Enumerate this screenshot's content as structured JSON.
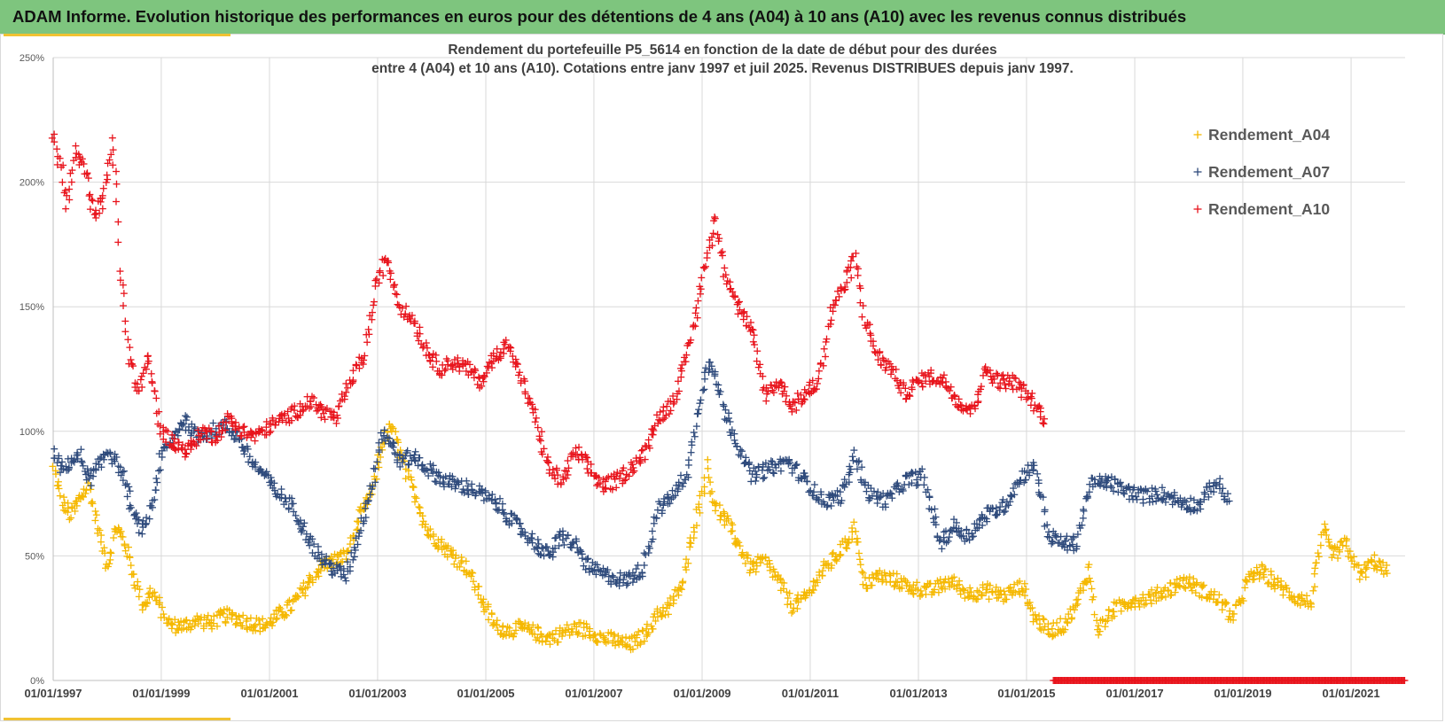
{
  "header": {
    "title": "ADAM Informe. Evolution historique des performances en euros pour des détentions de 4 ans (A04) à 10 ans (A10) avec les revenus connus distribués",
    "bar_color": "#7ec57e"
  },
  "chart_data": {
    "type": "scatter",
    "title_line1": "Rendement du portefeuille P5_5614 en fonction de la date de début pour des durées",
    "title_line2": "entre 4 (A04) et 10 ans (A10). Cotations  entre janv 1997 et juil 2025. Revenus DISTRIBUES depuis janv 1997.",
    "x_ticks": [
      "01/01/1997",
      "01/01/1999",
      "01/01/2001",
      "01/01/2003",
      "01/01/2005",
      "01/01/2007",
      "01/01/2009",
      "01/01/2011",
      "01/01/2013",
      "01/01/2015",
      "01/01/2017",
      "01/01/2019",
      "01/01/2021"
    ],
    "y_ticks": [
      "0%",
      "50%",
      "100%",
      "150%",
      "200%",
      "250%"
    ],
    "xlim": [
      "1997-01-01",
      "2022-01-01"
    ],
    "ylim": [
      0,
      2.5
    ],
    "grid": true,
    "legend_position": "top-right",
    "marker": "+",
    "series": [
      {
        "name": "Rendement_A04",
        "color": "#f5b800",
        "points": [
          [
            "1997-01-01",
            0.85
          ],
          [
            "1997-03-01",
            0.72
          ],
          [
            "1997-05-01",
            0.66
          ],
          [
            "1997-07-01",
            0.73
          ],
          [
            "1997-09-01",
            0.78
          ],
          [
            "1997-11-01",
            0.6
          ],
          [
            "1998-01-01",
            0.46
          ],
          [
            "1998-03-01",
            0.62
          ],
          [
            "1998-05-01",
            0.55
          ],
          [
            "1998-07-01",
            0.42
          ],
          [
            "1998-09-01",
            0.3
          ],
          [
            "1998-11-01",
            0.36
          ],
          [
            "1999-01-01",
            0.28
          ],
          [
            "1999-03-01",
            0.22
          ],
          [
            "1999-06-01",
            0.22
          ],
          [
            "1999-09-01",
            0.24
          ],
          [
            "1999-12-01",
            0.23
          ],
          [
            "2000-03-01",
            0.26
          ],
          [
            "2000-06-01",
            0.25
          ],
          [
            "2000-09-01",
            0.23
          ],
          [
            "2000-12-01",
            0.22
          ],
          [
            "2001-03-01",
            0.26
          ],
          [
            "2001-06-01",
            0.3
          ],
          [
            "2001-09-01",
            0.37
          ],
          [
            "2001-12-01",
            0.45
          ],
          [
            "2002-03-01",
            0.48
          ],
          [
            "2002-06-01",
            0.5
          ],
          [
            "2002-09-01",
            0.65
          ],
          [
            "2002-12-01",
            0.77
          ],
          [
            "2003-02-01",
            0.95
          ],
          [
            "2003-04-01",
            1.02
          ],
          [
            "2003-06-01",
            0.92
          ],
          [
            "2003-08-01",
            0.8
          ],
          [
            "2003-10-01",
            0.72
          ],
          [
            "2003-12-01",
            0.6
          ],
          [
            "2004-03-01",
            0.55
          ],
          [
            "2004-06-01",
            0.5
          ],
          [
            "2004-09-01",
            0.45
          ],
          [
            "2004-12-01",
            0.33
          ],
          [
            "2005-03-01",
            0.22
          ],
          [
            "2005-06-01",
            0.2
          ],
          [
            "2005-09-01",
            0.21
          ],
          [
            "2005-12-01",
            0.19
          ],
          [
            "2006-03-01",
            0.17
          ],
          [
            "2006-06-01",
            0.19
          ],
          [
            "2006-09-01",
            0.21
          ],
          [
            "2006-12-01",
            0.2
          ],
          [
            "2007-03-01",
            0.17
          ],
          [
            "2007-06-01",
            0.16
          ],
          [
            "2007-09-01",
            0.14
          ],
          [
            "2007-12-01",
            0.18
          ],
          [
            "2008-03-01",
            0.26
          ],
          [
            "2008-06-01",
            0.3
          ],
          [
            "2008-09-01",
            0.4
          ],
          [
            "2008-11-01",
            0.6
          ],
          [
            "2009-01-01",
            0.75
          ],
          [
            "2009-02-01",
            0.86
          ],
          [
            "2009-04-01",
            0.7
          ],
          [
            "2009-06-01",
            0.65
          ],
          [
            "2009-09-01",
            0.55
          ],
          [
            "2009-12-01",
            0.45
          ],
          [
            "2010-03-01",
            0.48
          ],
          [
            "2010-06-01",
            0.4
          ],
          [
            "2010-09-01",
            0.3
          ],
          [
            "2010-12-01",
            0.33
          ],
          [
            "2011-03-01",
            0.42
          ],
          [
            "2011-06-01",
            0.48
          ],
          [
            "2011-09-01",
            0.55
          ],
          [
            "2011-11-01",
            0.62
          ],
          [
            "2012-01-01",
            0.38
          ],
          [
            "2012-04-01",
            0.42
          ],
          [
            "2012-08-01",
            0.4
          ],
          [
            "2012-12-01",
            0.37
          ],
          [
            "2013-04-01",
            0.36
          ],
          [
            "2013-08-01",
            0.4
          ],
          [
            "2013-12-01",
            0.35
          ],
          [
            "2014-04-01",
            0.36
          ],
          [
            "2014-08-01",
            0.34
          ],
          [
            "2014-12-01",
            0.38
          ],
          [
            "2015-03-01",
            0.25
          ],
          [
            "2015-06-01",
            0.2
          ],
          [
            "2015-09-01",
            0.22
          ],
          [
            "2015-12-01",
            0.3
          ],
          [
            "2016-03-01",
            0.45
          ],
          [
            "2016-05-01",
            0.2
          ],
          [
            "2016-08-01",
            0.28
          ],
          [
            "2016-12-01",
            0.32
          ],
          [
            "2017-04-01",
            0.33
          ],
          [
            "2017-08-01",
            0.36
          ],
          [
            "2017-12-01",
            0.4
          ],
          [
            "2018-04-01",
            0.36
          ],
          [
            "2018-08-01",
            0.32
          ],
          [
            "2018-11-01",
            0.25
          ],
          [
            "2019-02-01",
            0.4
          ],
          [
            "2019-05-01",
            0.44
          ],
          [
            "2019-09-01",
            0.38
          ],
          [
            "2019-12-01",
            0.34
          ],
          [
            "2020-04-01",
            0.31
          ],
          [
            "2020-07-01",
            0.6
          ],
          [
            "2020-09-01",
            0.5
          ],
          [
            "2020-12-01",
            0.55
          ],
          [
            "2021-03-01",
            0.42
          ],
          [
            "2021-06-01",
            0.48
          ],
          [
            "2021-09-01",
            0.43
          ]
        ]
      },
      {
        "name": "Rendement_A07",
        "color": "#2f4b7c",
        "points": [
          [
            "1997-01-01",
            0.92
          ],
          [
            "1997-03-01",
            0.84
          ],
          [
            "1997-05-01",
            0.88
          ],
          [
            "1997-07-01",
            0.9
          ],
          [
            "1997-09-01",
            0.8
          ],
          [
            "1997-11-01",
            0.85
          ],
          [
            "1998-01-01",
            0.93
          ],
          [
            "1998-03-01",
            0.88
          ],
          [
            "1998-05-01",
            0.8
          ],
          [
            "1998-07-01",
            0.65
          ],
          [
            "1998-09-01",
            0.6
          ],
          [
            "1998-11-01",
            0.72
          ],
          [
            "1999-01-01",
            0.9
          ],
          [
            "1999-03-01",
            0.95
          ],
          [
            "1999-06-01",
            1.05
          ],
          [
            "1999-09-01",
            0.98
          ],
          [
            "1999-12-01",
            1.0
          ],
          [
            "2000-03-01",
            1.02
          ],
          [
            "2000-06-01",
            0.98
          ],
          [
            "2000-09-01",
            0.88
          ],
          [
            "2000-12-01",
            0.82
          ],
          [
            "2001-03-01",
            0.75
          ],
          [
            "2001-06-01",
            0.7
          ],
          [
            "2001-09-01",
            0.6
          ],
          [
            "2001-12-01",
            0.5
          ],
          [
            "2002-03-01",
            0.45
          ],
          [
            "2002-06-01",
            0.42
          ],
          [
            "2002-09-01",
            0.6
          ],
          [
            "2002-12-01",
            0.8
          ],
          [
            "2003-02-01",
            1.0
          ],
          [
            "2003-04-01",
            0.95
          ],
          [
            "2003-06-01",
            0.88
          ],
          [
            "2003-09-01",
            0.9
          ],
          [
            "2003-12-01",
            0.85
          ],
          [
            "2004-04-01",
            0.8
          ],
          [
            "2004-08-01",
            0.78
          ],
          [
            "2004-12-01",
            0.75
          ],
          [
            "2005-04-01",
            0.7
          ],
          [
            "2005-08-01",
            0.62
          ],
          [
            "2005-12-01",
            0.55
          ],
          [
            "2006-03-01",
            0.5
          ],
          [
            "2006-06-01",
            0.58
          ],
          [
            "2006-09-01",
            0.54
          ],
          [
            "2006-12-01",
            0.45
          ],
          [
            "2007-04-01",
            0.42
          ],
          [
            "2007-08-01",
            0.4
          ],
          [
            "2007-12-01",
            0.45
          ],
          [
            "2008-03-01",
            0.68
          ],
          [
            "2008-07-01",
            0.75
          ],
          [
            "2008-10-01",
            0.85
          ],
          [
            "2009-01-01",
            1.18
          ],
          [
            "2009-03-01",
            1.3
          ],
          [
            "2009-06-01",
            1.08
          ],
          [
            "2009-09-01",
            0.95
          ],
          [
            "2009-12-01",
            0.82
          ],
          [
            "2010-04-01",
            0.85
          ],
          [
            "2010-08-01",
            0.88
          ],
          [
            "2010-12-01",
            0.8
          ],
          [
            "2011-04-01",
            0.72
          ],
          [
            "2011-08-01",
            0.74
          ],
          [
            "2011-11-01",
            0.9
          ],
          [
            "2012-02-01",
            0.75
          ],
          [
            "2012-06-01",
            0.72
          ],
          [
            "2012-10-01",
            0.8
          ],
          [
            "2013-02-01",
            0.82
          ],
          [
            "2013-06-01",
            0.55
          ],
          [
            "2013-09-01",
            0.62
          ],
          [
            "2013-12-01",
            0.58
          ],
          [
            "2014-04-01",
            0.66
          ],
          [
            "2014-08-01",
            0.7
          ],
          [
            "2014-12-01",
            0.82
          ],
          [
            "2015-03-01",
            0.86
          ],
          [
            "2015-06-01",
            0.58
          ],
          [
            "2015-09-01",
            0.55
          ],
          [
            "2015-12-01",
            0.55
          ],
          [
            "2016-03-01",
            0.78
          ],
          [
            "2016-07-01",
            0.8
          ],
          [
            "2016-11-01",
            0.76
          ],
          [
            "2017-03-01",
            0.74
          ],
          [
            "2017-07-01",
            0.75
          ],
          [
            "2017-11-01",
            0.72
          ],
          [
            "2018-03-01",
            0.7
          ],
          [
            "2018-07-01",
            0.8
          ],
          [
            "2018-10-01",
            0.72
          ]
        ]
      },
      {
        "name": "Rendement_A10",
        "color": "#e8141c",
        "points": [
          [
            "1997-01-01",
            2.18
          ],
          [
            "1997-03-01",
            2.05
          ],
          [
            "1997-04-01",
            1.9
          ],
          [
            "1997-06-01",
            2.12
          ],
          [
            "1997-08-01",
            2.05
          ],
          [
            "1997-10-01",
            1.88
          ],
          [
            "1997-12-01",
            1.92
          ],
          [
            "1998-02-01",
            2.15
          ],
          [
            "1998-03-01",
            2.0
          ],
          [
            "1998-04-01",
            1.65
          ],
          [
            "1998-06-01",
            1.3
          ],
          [
            "1998-08-01",
            1.15
          ],
          [
            "1998-10-01",
            1.3
          ],
          [
            "1999-01-01",
            1.0
          ],
          [
            "1999-04-01",
            0.95
          ],
          [
            "1999-07-01",
            0.92
          ],
          [
            "1999-10-01",
            1.0
          ],
          [
            "2000-01-01",
            0.98
          ],
          [
            "2000-04-01",
            1.05
          ],
          [
            "2000-07-01",
            1.0
          ],
          [
            "2000-10-01",
            0.98
          ],
          [
            "2001-01-01",
            1.02
          ],
          [
            "2001-04-01",
            1.05
          ],
          [
            "2001-07-01",
            1.08
          ],
          [
            "2001-10-01",
            1.12
          ],
          [
            "2002-01-01",
            1.08
          ],
          [
            "2002-04-01",
            1.05
          ],
          [
            "2002-07-01",
            1.2
          ],
          [
            "2002-10-01",
            1.3
          ],
          [
            "2003-01-01",
            1.6
          ],
          [
            "2003-03-01",
            1.7
          ],
          [
            "2003-06-01",
            1.5
          ],
          [
            "2003-09-01",
            1.45
          ],
          [
            "2003-12-01",
            1.32
          ],
          [
            "2004-03-01",
            1.25
          ],
          [
            "2004-06-01",
            1.28
          ],
          [
            "2004-09-01",
            1.25
          ],
          [
            "2004-12-01",
            1.2
          ],
          [
            "2005-03-01",
            1.3
          ],
          [
            "2005-06-01",
            1.35
          ],
          [
            "2005-09-01",
            1.2
          ],
          [
            "2005-12-01",
            1.05
          ],
          [
            "2006-03-01",
            0.85
          ],
          [
            "2006-06-01",
            0.8
          ],
          [
            "2006-09-01",
            0.92
          ],
          [
            "2006-12-01",
            0.85
          ],
          [
            "2007-03-01",
            0.78
          ],
          [
            "2007-06-01",
            0.8
          ],
          [
            "2007-09-01",
            0.85
          ],
          [
            "2007-12-01",
            0.9
          ],
          [
            "2008-03-01",
            1.05
          ],
          [
            "2008-06-01",
            1.1
          ],
          [
            "2008-09-01",
            1.25
          ],
          [
            "2008-12-01",
            1.5
          ],
          [
            "2009-02-01",
            1.7
          ],
          [
            "2009-04-01",
            1.85
          ],
          [
            "2009-06-01",
            1.65
          ],
          [
            "2009-09-01",
            1.5
          ],
          [
            "2009-12-01",
            1.4
          ],
          [
            "2010-03-01",
            1.15
          ],
          [
            "2010-06-01",
            1.2
          ],
          [
            "2010-09-01",
            1.1
          ],
          [
            "2010-12-01",
            1.15
          ],
          [
            "2011-03-01",
            1.2
          ],
          [
            "2011-06-01",
            1.5
          ],
          [
            "2011-09-01",
            1.6
          ],
          [
            "2011-11-01",
            1.7
          ],
          [
            "2012-01-01",
            1.45
          ],
          [
            "2012-04-01",
            1.3
          ],
          [
            "2012-07-01",
            1.25
          ],
          [
            "2012-10-01",
            1.15
          ],
          [
            "2013-01-01",
            1.2
          ],
          [
            "2013-04-01",
            1.22
          ],
          [
            "2013-07-01",
            1.2
          ],
          [
            "2013-10-01",
            1.12
          ],
          [
            "2014-01-01",
            1.08
          ],
          [
            "2014-04-01",
            1.25
          ],
          [
            "2014-07-01",
            1.2
          ],
          [
            "2014-10-01",
            1.2
          ],
          [
            "2015-01-01",
            1.15
          ],
          [
            "2015-03-01",
            1.1
          ],
          [
            "2015-05-01",
            1.05
          ]
        ],
        "zero_from": "2015-07-01",
        "zero_to": "2022-01-01"
      }
    ]
  }
}
